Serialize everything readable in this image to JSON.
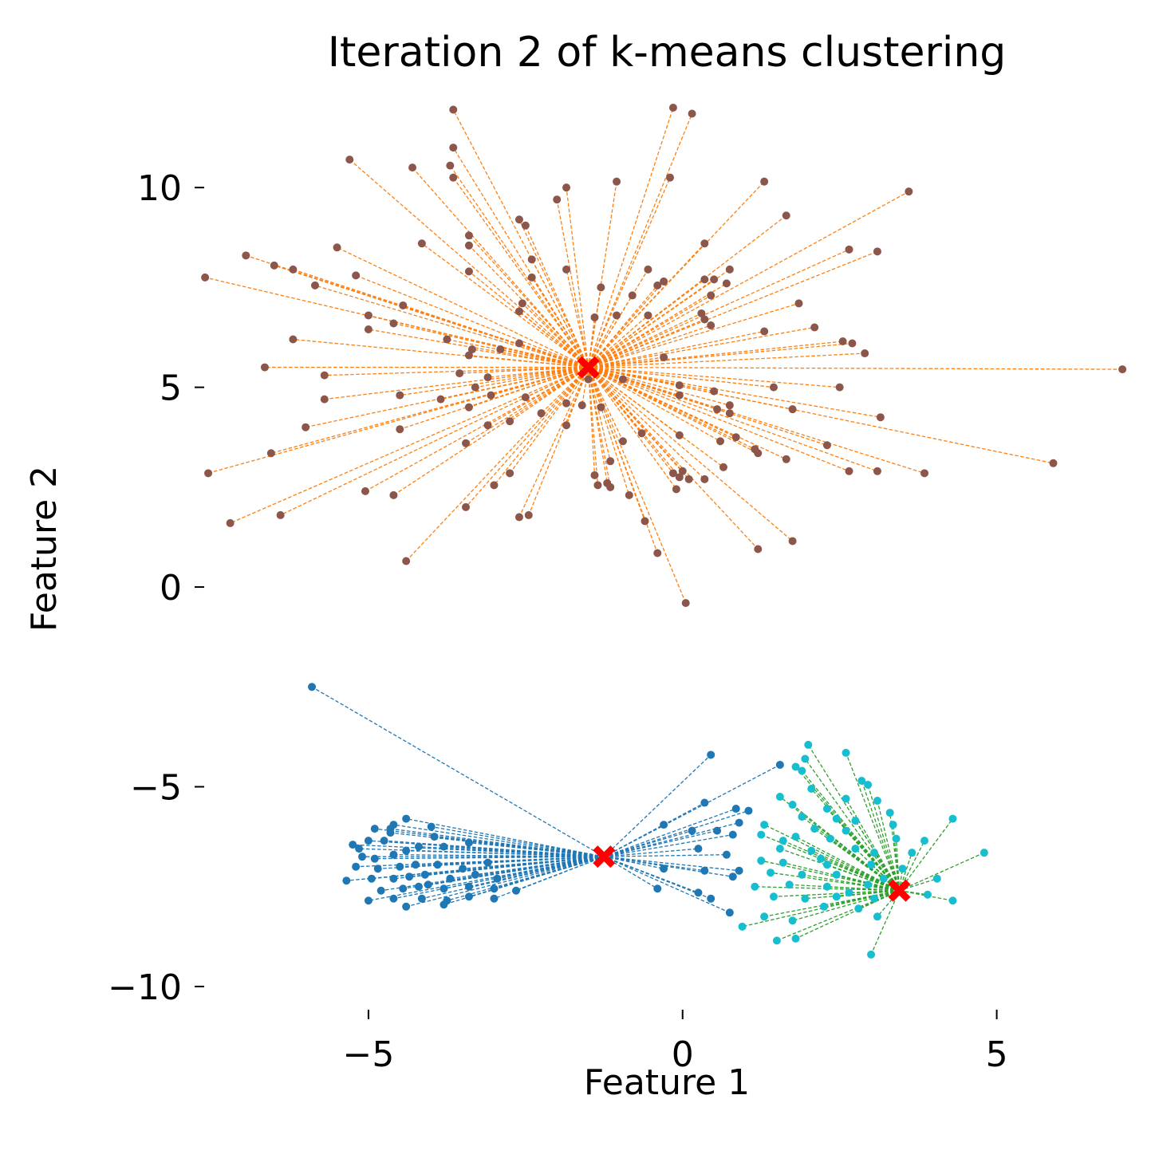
{
  "chart_data": {
    "type": "scatter",
    "title": "Iteration 2 of k-means clustering",
    "xlabel": "Feature 1",
    "ylabel": "Feature 2",
    "xlim": [
      -7.5,
      7.1
    ],
    "ylim": [
      -10.5,
      12.0
    ],
    "xticks": [
      -5,
      0,
      5
    ],
    "xtick_labels": [
      "−5",
      "0",
      "5"
    ],
    "yticks": [
      -10,
      -5,
      0,
      5,
      10
    ],
    "ytick_labels": [
      "−10",
      "−5",
      "0",
      "5",
      "10"
    ],
    "grid": false,
    "legend": "none",
    "centroids": [
      {
        "x": -1.5,
        "y": 5.5,
        "color": "#ff0000"
      },
      {
        "x": -1.25,
        "y": -6.75,
        "color": "#ff0000"
      },
      {
        "x": 3.45,
        "y": -7.6,
        "color": "#ff0000"
      }
    ],
    "clusters": [
      {
        "point_color": "#8c564b",
        "line_color": "#ff7f0e",
        "centroid_index": 0,
        "points": [
          [
            -0.15,
            12.0
          ],
          [
            -3.65,
            11.95
          ],
          [
            0.15,
            11.85
          ],
          [
            -3.65,
            11.0
          ],
          [
            -5.3,
            10.7
          ],
          [
            -3.7,
            10.55
          ],
          [
            -4.3,
            10.5
          ],
          [
            -3.65,
            10.25
          ],
          [
            -1.85,
            10.0
          ],
          [
            -1.05,
            10.15
          ],
          [
            -0.2,
            10.25
          ],
          [
            1.3,
            10.15
          ],
          [
            3.6,
            9.9
          ],
          [
            -2.0,
            9.7
          ],
          [
            -2.6,
            9.2
          ],
          [
            -2.5,
            9.05
          ],
          [
            -2.4,
            8.2
          ],
          [
            1.65,
            9.3
          ],
          [
            -3.4,
            8.8
          ],
          [
            -4.15,
            8.6
          ],
          [
            -3.4,
            8.55
          ],
          [
            -5.5,
            8.5
          ],
          [
            0.35,
            8.6
          ],
          [
            2.65,
            8.45
          ],
          [
            3.1,
            8.4
          ],
          [
            -6.95,
            8.3
          ],
          [
            -6.5,
            8.05
          ],
          [
            -6.2,
            7.95
          ],
          [
            -5.2,
            7.8
          ],
          [
            -3.4,
            7.9
          ],
          [
            -2.4,
            7.75
          ],
          [
            -1.85,
            7.95
          ],
          [
            -0.55,
            7.95
          ],
          [
            0.75,
            7.95
          ],
          [
            -7.6,
            7.75
          ],
          [
            -5.85,
            7.55
          ],
          [
            -1.3,
            7.5
          ],
          [
            -0.4,
            7.55
          ],
          [
            -0.3,
            7.65
          ],
          [
            0.35,
            7.7
          ],
          [
            0.5,
            7.7
          ],
          [
            0.7,
            7.6
          ],
          [
            -2.55,
            7.1
          ],
          [
            -0.8,
            7.3
          ],
          [
            0.45,
            7.3
          ],
          [
            -4.45,
            7.05
          ],
          [
            1.85,
            7.1
          ],
          [
            -2.6,
            6.9
          ],
          [
            -1.4,
            6.75
          ],
          [
            -1.05,
            6.8
          ],
          [
            -0.55,
            6.8
          ],
          [
            0.3,
            6.85
          ],
          [
            0.35,
            6.7
          ],
          [
            -5.0,
            6.8
          ],
          [
            -4.6,
            6.6
          ],
          [
            -5.0,
            6.45
          ],
          [
            0.45,
            6.55
          ],
          [
            1.3,
            6.4
          ],
          [
            2.1,
            6.5
          ],
          [
            -6.2,
            6.2
          ],
          [
            -3.75,
            6.2
          ],
          [
            -2.6,
            6.1
          ],
          [
            2.55,
            6.15
          ],
          [
            2.7,
            6.1
          ],
          [
            -3.35,
            5.95
          ],
          [
            -2.9,
            5.95
          ],
          [
            -0.3,
            5.75
          ],
          [
            2.9,
            5.85
          ],
          [
            -3.4,
            5.8
          ],
          [
            -6.65,
            5.5
          ],
          [
            7.0,
            5.45
          ],
          [
            -5.7,
            5.3
          ],
          [
            -3.55,
            5.35
          ],
          [
            -3.1,
            5.25
          ],
          [
            -1.5,
            5.2
          ],
          [
            -0.95,
            5.2
          ],
          [
            -3.3,
            5.0
          ],
          [
            -0.05,
            5.05
          ],
          [
            -0.05,
            4.8
          ],
          [
            0.5,
            4.9
          ],
          [
            1.45,
            5.0
          ],
          [
            2.5,
            5.0
          ],
          [
            -5.7,
            4.7
          ],
          [
            -4.5,
            4.8
          ],
          [
            -3.85,
            4.7
          ],
          [
            -3.05,
            4.8
          ],
          [
            -2.5,
            4.75
          ],
          [
            -1.85,
            4.6
          ],
          [
            -1.6,
            4.55
          ],
          [
            0.75,
            4.55
          ],
          [
            -3.4,
            4.5
          ],
          [
            -2.25,
            4.35
          ],
          [
            -1.3,
            4.5
          ],
          [
            0.55,
            4.45
          ],
          [
            0.75,
            4.35
          ],
          [
            1.75,
            4.45
          ],
          [
            3.15,
            4.25
          ],
          [
            -6.0,
            4.0
          ],
          [
            -4.5,
            3.95
          ],
          [
            -3.1,
            4.05
          ],
          [
            -2.75,
            4.15
          ],
          [
            -1.85,
            4.05
          ],
          [
            -0.65,
            3.85
          ],
          [
            -0.05,
            3.8
          ],
          [
            -3.45,
            3.6
          ],
          [
            -0.95,
            3.65
          ],
          [
            0.6,
            3.65
          ],
          [
            0.85,
            3.75
          ],
          [
            1.15,
            3.45
          ],
          [
            1.2,
            3.35
          ],
          [
            2.3,
            3.55
          ],
          [
            -6.55,
            3.35
          ],
          [
            -1.4,
            2.8
          ],
          [
            -1.15,
            3.15
          ],
          [
            1.65,
            3.2
          ],
          [
            5.9,
            3.1
          ],
          [
            0.65,
            3.0
          ],
          [
            -7.55,
            2.85
          ],
          [
            -2.75,
            2.85
          ],
          [
            -0.15,
            2.85
          ],
          [
            0.0,
            2.9
          ],
          [
            2.65,
            2.9
          ],
          [
            3.1,
            2.9
          ],
          [
            3.85,
            2.85
          ],
          [
            -1.35,
            2.55
          ],
          [
            -1.2,
            2.6
          ],
          [
            -1.15,
            2.5
          ],
          [
            -0.05,
            2.75
          ],
          [
            0.1,
            2.7
          ],
          [
            0.35,
            2.7
          ],
          [
            -5.05,
            2.4
          ],
          [
            -4.6,
            2.3
          ],
          [
            -0.85,
            2.3
          ],
          [
            -3.0,
            2.55
          ],
          [
            -0.1,
            2.45
          ],
          [
            -3.45,
            2.0
          ],
          [
            -2.6,
            1.75
          ],
          [
            -2.45,
            1.8
          ],
          [
            -6.4,
            1.8
          ],
          [
            -0.6,
            1.65
          ],
          [
            -7.2,
            1.6
          ],
          [
            1.75,
            1.15
          ],
          [
            -0.4,
            0.85
          ],
          [
            1.2,
            0.95
          ],
          [
            -4.4,
            0.65
          ],
          [
            0.05,
            -0.4
          ]
        ]
      },
      {
        "point_color": "#1f77b4",
        "line_color": "#1f77b4",
        "centroid_index": 1,
        "points": [
          [
            -5.9,
            -2.5
          ],
          [
            0.45,
            -4.2
          ],
          [
            1.55,
            -4.45
          ],
          [
            0.35,
            -5.4
          ],
          [
            0.85,
            -5.55
          ],
          [
            1.05,
            -5.6
          ],
          [
            -4.4,
            -5.8
          ],
          [
            -4.6,
            -5.95
          ],
          [
            -4.9,
            -6.05
          ],
          [
            -4.65,
            -6.15
          ],
          [
            -4.0,
            -6.0
          ],
          [
            0.9,
            -5.9
          ],
          [
            -0.3,
            -5.95
          ],
          [
            -5.0,
            -6.35
          ],
          [
            -5.25,
            -6.45
          ],
          [
            -4.75,
            -6.35
          ],
          [
            0.15,
            -6.1
          ],
          [
            0.55,
            -6.1
          ],
          [
            0.8,
            -6.2
          ],
          [
            -5.1,
            -6.75
          ],
          [
            -4.9,
            -6.8
          ],
          [
            -4.6,
            -6.7
          ],
          [
            -4.4,
            -6.6
          ],
          [
            -4.2,
            -6.5
          ],
          [
            -3.8,
            -6.5
          ],
          [
            -3.4,
            -6.4
          ],
          [
            0.25,
            -6.55
          ],
          [
            0.7,
            -6.7
          ],
          [
            -5.2,
            -7.0
          ],
          [
            -4.85,
            -7.05
          ],
          [
            -4.5,
            -7.0
          ],
          [
            -4.25,
            -6.95
          ],
          [
            -3.9,
            -6.95
          ],
          [
            -3.5,
            -7.05
          ],
          [
            -3.1,
            -6.9
          ],
          [
            -5.35,
            -7.35
          ],
          [
            -4.95,
            -7.3
          ],
          [
            -4.6,
            -7.3
          ],
          [
            -4.35,
            -7.25
          ],
          [
            -4.1,
            -7.2
          ],
          [
            -3.7,
            -7.3
          ],
          [
            -3.3,
            -7.2
          ],
          [
            -2.95,
            -7.3
          ],
          [
            -0.3,
            -7.05
          ],
          [
            0.35,
            -7.1
          ],
          [
            0.9,
            -7.1
          ],
          [
            0.8,
            -7.25
          ],
          [
            -4.8,
            -7.6
          ],
          [
            -4.45,
            -7.55
          ],
          [
            -4.2,
            -7.5
          ],
          [
            -3.8,
            -7.55
          ],
          [
            -3.4,
            -7.5
          ],
          [
            -3.0,
            -7.55
          ],
          [
            -2.65,
            -7.6
          ],
          [
            -0.4,
            -7.55
          ],
          [
            0.25,
            -7.65
          ],
          [
            -5.0,
            -7.85
          ],
          [
            -4.6,
            -7.8
          ],
          [
            -4.15,
            -7.8
          ],
          [
            -3.75,
            -7.85
          ],
          [
            -3.4,
            -7.75
          ],
          [
            -3.0,
            -7.8
          ],
          [
            -4.4,
            -8.0
          ],
          [
            -3.8,
            -7.95
          ],
          [
            0.45,
            -7.8
          ],
          [
            0.75,
            -8.15
          ],
          [
            -4.65,
            -6.05
          ],
          [
            -3.95,
            -6.25
          ],
          [
            -5.15,
            -6.55
          ],
          [
            -4.05,
            -7.45
          ]
        ]
      },
      {
        "point_color": "#17becf",
        "line_color": "#2ca02c",
        "centroid_index": 2,
        "points": [
          [
            2.0,
            -3.95
          ],
          [
            2.6,
            -4.15
          ],
          [
            1.95,
            -4.3
          ],
          [
            1.9,
            -4.6
          ],
          [
            1.8,
            -4.5
          ],
          [
            2.85,
            -4.85
          ],
          [
            2.95,
            -4.95
          ],
          [
            2.05,
            -5.05
          ],
          [
            1.55,
            -5.25
          ],
          [
            2.6,
            -5.3
          ],
          [
            3.1,
            -5.35
          ],
          [
            1.75,
            -5.45
          ],
          [
            2.3,
            -5.55
          ],
          [
            3.3,
            -5.65
          ],
          [
            1.9,
            -5.75
          ],
          [
            2.45,
            -5.8
          ],
          [
            2.75,
            -5.85
          ],
          [
            4.3,
            -5.8
          ],
          [
            3.35,
            -5.95
          ],
          [
            1.3,
            -5.95
          ],
          [
            2.1,
            -6.05
          ],
          [
            2.6,
            -6.1
          ],
          [
            3.4,
            -6.3
          ],
          [
            1.25,
            -6.2
          ],
          [
            1.8,
            -6.25
          ],
          [
            2.35,
            -6.3
          ],
          [
            3.85,
            -6.35
          ],
          [
            1.55,
            -6.55
          ],
          [
            2.05,
            -6.6
          ],
          [
            2.75,
            -6.55
          ],
          [
            3.05,
            -6.65
          ],
          [
            3.65,
            -6.65
          ],
          [
            4.8,
            -6.65
          ],
          [
            1.25,
            -6.85
          ],
          [
            1.6,
            -6.9
          ],
          [
            2.3,
            -6.95
          ],
          [
            3.0,
            -6.95
          ],
          [
            1.4,
            -7.15
          ],
          [
            1.9,
            -7.2
          ],
          [
            2.45,
            -7.2
          ],
          [
            3.2,
            -7.3
          ],
          [
            4.05,
            -7.3
          ],
          [
            1.7,
            -7.45
          ],
          [
            2.3,
            -7.5
          ],
          [
            1.15,
            -7.5
          ],
          [
            2.95,
            -7.45
          ],
          [
            1.45,
            -7.75
          ],
          [
            1.95,
            -7.8
          ],
          [
            2.45,
            -7.75
          ],
          [
            3.05,
            -7.8
          ],
          [
            3.9,
            -7.7
          ],
          [
            4.3,
            -7.85
          ],
          [
            2.25,
            -8.0
          ],
          [
            2.8,
            -8.05
          ],
          [
            1.3,
            -8.25
          ],
          [
            1.75,
            -8.35
          ],
          [
            3.1,
            -8.25
          ],
          [
            0.95,
            -8.5
          ],
          [
            1.5,
            -8.85
          ],
          [
            1.8,
            -8.8
          ],
          [
            3.0,
            -9.2
          ],
          [
            2.2,
            -6.8
          ],
          [
            3.5,
            -7.05
          ],
          [
            1.6,
            -6.35
          ],
          [
            2.65,
            -7.65
          ]
        ]
      }
    ]
  }
}
